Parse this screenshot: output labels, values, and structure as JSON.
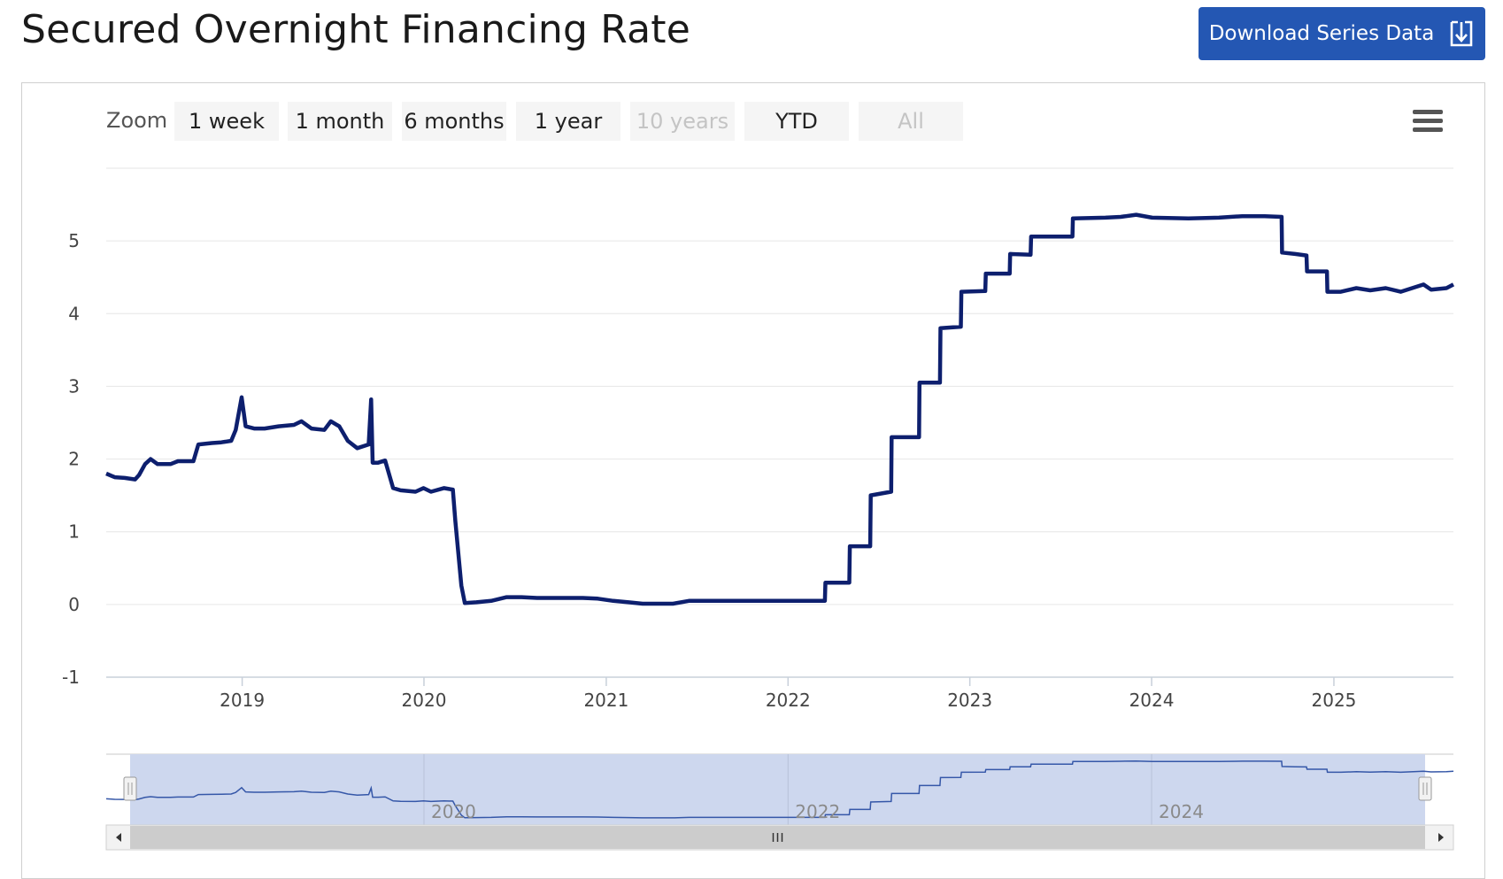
{
  "header": {
    "title": "Secured Overnight Financing Rate",
    "download_label": "Download Series Data",
    "download_icon": "download-icon",
    "accent_color": "#2457b3"
  },
  "toolbar": {
    "zoom_label": "Zoom",
    "buttons": [
      {
        "label": "1 week",
        "enabled": true
      },
      {
        "label": "1 month",
        "enabled": true
      },
      {
        "label": "6 months",
        "enabled": true
      },
      {
        "label": "1 year",
        "enabled": true
      },
      {
        "label": "10 years",
        "enabled": false
      },
      {
        "label": "YTD",
        "enabled": true
      },
      {
        "label": "All",
        "enabled": false
      }
    ],
    "menu_icon": "hamburger-menu-icon"
  },
  "chart_data": {
    "type": "line",
    "title": "",
    "xlabel": "",
    "ylabel": "",
    "line_color": "#0d1f6e",
    "grid": true,
    "ylim": [
      -1,
      6
    ],
    "xlim": [
      "2018-04-03",
      "2025-08-29"
    ],
    "y_ticks": [
      "-1",
      "0",
      "1",
      "2",
      "3",
      "4",
      "5"
    ],
    "x_ticks": [
      "2019",
      "2020",
      "2021",
      "2022",
      "2023",
      "2024",
      "2025"
    ],
    "series": [
      {
        "points": [
          [
            "2018-04-03",
            1.8
          ],
          [
            "2018-04-20",
            1.75
          ],
          [
            "2018-05-10",
            1.74
          ],
          [
            "2018-05-31",
            1.72
          ],
          [
            "2018-06-08",
            1.78
          ],
          [
            "2018-06-20",
            1.93
          ],
          [
            "2018-07-01",
            2.0
          ],
          [
            "2018-07-15",
            1.93
          ],
          [
            "2018-08-10",
            1.93
          ],
          [
            "2018-08-25",
            1.97
          ],
          [
            "2018-09-25",
            1.97
          ],
          [
            "2018-10-05",
            2.2
          ],
          [
            "2018-11-01",
            2.22
          ],
          [
            "2018-11-20",
            2.23
          ],
          [
            "2018-12-10",
            2.25
          ],
          [
            "2018-12-19",
            2.4
          ],
          [
            "2018-12-31",
            2.85
          ],
          [
            "2019-01-08",
            2.45
          ],
          [
            "2019-01-25",
            2.42
          ],
          [
            "2019-02-15",
            2.42
          ],
          [
            "2019-03-15",
            2.45
          ],
          [
            "2019-04-15",
            2.47
          ],
          [
            "2019-04-30",
            2.52
          ],
          [
            "2019-05-20",
            2.42
          ],
          [
            "2019-06-15",
            2.4
          ],
          [
            "2019-06-28",
            2.52
          ],
          [
            "2019-07-15",
            2.45
          ],
          [
            "2019-08-01",
            2.25
          ],
          [
            "2019-08-20",
            2.15
          ],
          [
            "2019-09-12",
            2.2
          ],
          [
            "2019-09-17",
            2.82
          ],
          [
            "2019-09-20",
            1.95
          ],
          [
            "2019-10-01",
            1.95
          ],
          [
            "2019-10-15",
            1.98
          ],
          [
            "2019-10-31",
            1.6
          ],
          [
            "2019-11-15",
            1.57
          ],
          [
            "2019-12-15",
            1.55
          ],
          [
            "2019-12-31",
            1.6
          ],
          [
            "2020-01-15",
            1.55
          ],
          [
            "2020-02-10",
            1.6
          ],
          [
            "2020-02-28",
            1.58
          ],
          [
            "2020-03-04",
            1.15
          ],
          [
            "2020-03-16",
            0.26
          ],
          [
            "2020-03-23",
            0.02
          ],
          [
            "2020-04-15",
            0.03
          ],
          [
            "2020-05-15",
            0.05
          ],
          [
            "2020-06-15",
            0.1
          ],
          [
            "2020-07-15",
            0.1
          ],
          [
            "2020-08-15",
            0.09
          ],
          [
            "2020-09-15",
            0.09
          ],
          [
            "2020-10-15",
            0.09
          ],
          [
            "2020-11-15",
            0.09
          ],
          [
            "2020-12-15",
            0.08
          ],
          [
            "2021-01-15",
            0.05
          ],
          [
            "2021-02-15",
            0.03
          ],
          [
            "2021-03-15",
            0.01
          ],
          [
            "2021-04-15",
            0.01
          ],
          [
            "2021-05-15",
            0.01
          ],
          [
            "2021-06-16",
            0.05
          ],
          [
            "2021-07-15",
            0.05
          ],
          [
            "2021-09-15",
            0.05
          ],
          [
            "2021-11-15",
            0.05
          ],
          [
            "2022-01-15",
            0.05
          ],
          [
            "2022-03-16",
            0.05
          ],
          [
            "2022-03-17",
            0.3
          ],
          [
            "2022-05-04",
            0.3
          ],
          [
            "2022-05-05",
            0.8
          ],
          [
            "2022-06-15",
            0.8
          ],
          [
            "2022-06-16",
            1.5
          ],
          [
            "2022-07-27",
            1.55
          ],
          [
            "2022-07-28",
            2.3
          ],
          [
            "2022-09-21",
            2.3
          ],
          [
            "2022-09-22",
            3.05
          ],
          [
            "2022-11-02",
            3.05
          ],
          [
            "2022-11-03",
            3.8
          ],
          [
            "2022-12-14",
            3.82
          ],
          [
            "2022-12-15",
            4.3
          ],
          [
            "2023-02-01",
            4.31
          ],
          [
            "2023-02-02",
            4.55
          ],
          [
            "2023-03-22",
            4.55
          ],
          [
            "2023-03-23",
            4.82
          ],
          [
            "2023-05-03",
            4.81
          ],
          [
            "2023-05-04",
            5.06
          ],
          [
            "2023-07-26",
            5.06
          ],
          [
            "2023-07-27",
            5.31
          ],
          [
            "2023-09-30",
            5.32
          ],
          [
            "2023-10-31",
            5.33
          ],
          [
            "2023-12-01",
            5.36
          ],
          [
            "2024-01-02",
            5.32
          ],
          [
            "2024-03-15",
            5.31
          ],
          [
            "2024-05-15",
            5.32
          ],
          [
            "2024-07-01",
            5.34
          ],
          [
            "2024-08-15",
            5.34
          ],
          [
            "2024-09-18",
            5.33
          ],
          [
            "2024-09-19",
            4.84
          ],
          [
            "2024-10-15",
            4.82
          ],
          [
            "2024-11-07",
            4.8
          ],
          [
            "2024-11-08",
            4.58
          ],
          [
            "2024-12-18",
            4.58
          ],
          [
            "2024-12-19",
            4.3
          ],
          [
            "2025-01-15",
            4.3
          ],
          [
            "2025-02-15",
            4.35
          ],
          [
            "2025-03-15",
            4.32
          ],
          [
            "2025-04-15",
            4.35
          ],
          [
            "2025-05-15",
            4.3
          ],
          [
            "2025-06-30",
            4.4
          ],
          [
            "2025-07-15",
            4.33
          ],
          [
            "2025-08-15",
            4.35
          ],
          [
            "2025-08-29",
            4.4
          ]
        ]
      }
    ]
  },
  "navigator": {
    "labels": [
      "2020",
      "2022",
      "2024"
    ],
    "left_handle_icon": "left-handle-grip-icon",
    "right_handle_icon": "right-handle-grip-icon",
    "scroll_left_icon": "scroll-left-arrow-icon",
    "scroll_right_icon": "scroll-right-arrow-icon",
    "scroll_thumb_icon": "scroll-thumb-grip-icon",
    "mask_color": "#cdd7ee",
    "line_color": "#3557a8"
  }
}
